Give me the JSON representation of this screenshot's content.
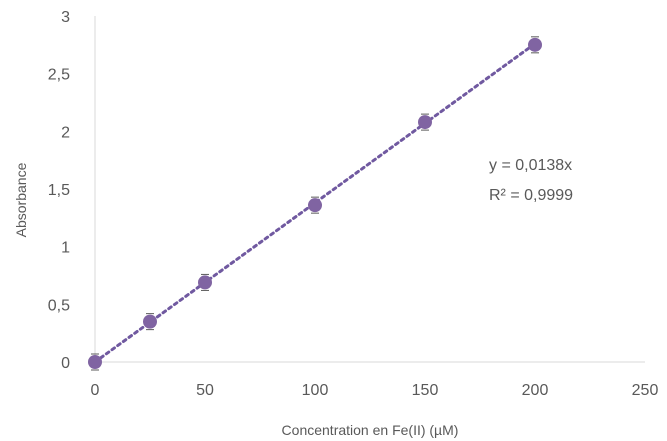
{
  "chart_data": {
    "type": "scatter",
    "title": "",
    "xlabel": "Concentration en Fe(II)  (µM)",
    "ylabel": "Absorbance",
    "xlim": [
      0,
      250
    ],
    "ylim": [
      0,
      3
    ],
    "x_ticks": [
      0,
      50,
      100,
      150,
      200,
      250
    ],
    "y_ticks": [
      0,
      0.5,
      1,
      1.5,
      2,
      2.5,
      3
    ],
    "x_tick_labels": [
      "0",
      "50",
      "100",
      "150",
      "200",
      "250"
    ],
    "y_tick_labels": [
      "0",
      "0,5",
      "1",
      "1,5",
      "2",
      "2,5",
      "3"
    ],
    "grid": false,
    "legend": "none",
    "series": [
      {
        "x": [
          0,
          25,
          50,
          100,
          150,
          200
        ],
        "y": [
          0,
          0.35,
          0.69,
          1.36,
          2.08,
          2.75
        ],
        "color": "#8064A2"
      }
    ],
    "trendline": {
      "type": "linear",
      "slope": 0.0138,
      "intercept": 0,
      "x_range": [
        0,
        200
      ],
      "style": "dotted",
      "color": "#7059A0"
    },
    "annotations": [
      "y = 0,0138x",
      "R² = 0,9999"
    ]
  }
}
